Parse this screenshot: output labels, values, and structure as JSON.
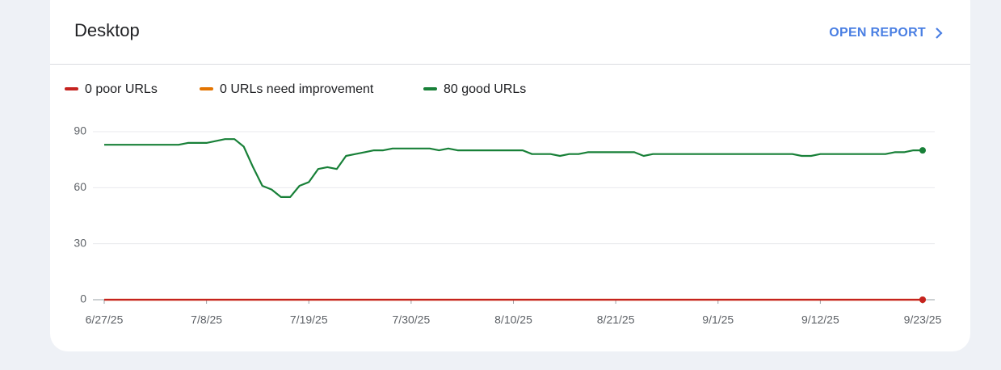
{
  "header": {
    "title": "Desktop",
    "action": "OPEN REPORT"
  },
  "chart_data": {
    "type": "line",
    "categories": [
      "6/27/25",
      null,
      null,
      null,
      null,
      null,
      null,
      null,
      null,
      null,
      null,
      "7/8/25",
      null,
      null,
      null,
      null,
      null,
      null,
      null,
      null,
      null,
      null,
      "7/19/25",
      null,
      null,
      null,
      null,
      null,
      null,
      null,
      null,
      null,
      null,
      "7/30/25",
      null,
      null,
      null,
      null,
      null,
      null,
      null,
      null,
      null,
      null,
      "8/10/25",
      null,
      null,
      null,
      null,
      null,
      null,
      null,
      null,
      null,
      null,
      "8/21/25",
      null,
      null,
      null,
      null,
      null,
      null,
      null,
      null,
      null,
      null,
      "9/1/25",
      null,
      null,
      null,
      null,
      null,
      null,
      null,
      null,
      null,
      null,
      "9/12/25",
      null,
      null,
      null,
      null,
      null,
      null,
      null,
      null,
      null,
      null,
      "9/23/25"
    ],
    "series": [
      {
        "name": "0 poor URLs",
        "color": "#c5221f",
        "values": [
          0,
          0,
          0,
          0,
          0,
          0,
          0,
          0,
          0,
          0,
          0,
          0,
          0,
          0,
          0,
          0,
          0,
          0,
          0,
          0,
          0,
          0,
          0,
          0,
          0,
          0,
          0,
          0,
          0,
          0,
          0,
          0,
          0,
          0,
          0,
          0,
          0,
          0,
          0,
          0,
          0,
          0,
          0,
          0,
          0,
          0,
          0,
          0,
          0,
          0,
          0,
          0,
          0,
          0,
          0,
          0,
          0,
          0,
          0,
          0,
          0,
          0,
          0,
          0,
          0,
          0,
          0,
          0,
          0,
          0,
          0,
          0,
          0,
          0,
          0,
          0,
          0,
          0,
          0,
          0,
          0,
          0,
          0,
          0,
          0,
          0,
          0,
          0,
          0
        ]
      },
      {
        "name": "0 URLs need improvement",
        "color": "#e37400",
        "values": [
          0,
          0,
          0,
          0,
          0,
          0,
          0,
          0,
          0,
          0,
          0,
          0,
          0,
          0,
          0,
          0,
          0,
          0,
          0,
          0,
          0,
          0,
          0,
          0,
          0,
          0,
          0,
          0,
          0,
          0,
          0,
          0,
          0,
          0,
          0,
          0,
          0,
          0,
          0,
          0,
          0,
          0,
          0,
          0,
          0,
          0,
          0,
          0,
          0,
          0,
          0,
          0,
          0,
          0,
          0,
          0,
          0,
          0,
          0,
          0,
          0,
          0,
          0,
          0,
          0,
          0,
          0,
          0,
          0,
          0,
          0,
          0,
          0,
          0,
          0,
          0,
          0,
          0,
          0,
          0,
          0,
          0,
          0,
          0,
          0,
          0,
          0,
          0,
          0
        ]
      },
      {
        "name": "80 good URLs",
        "color": "#188038",
        "values": [
          83,
          83,
          83,
          83,
          83,
          83,
          83,
          83,
          83,
          84,
          84,
          84,
          85,
          86,
          86,
          82,
          71,
          61,
          59,
          55,
          55,
          61,
          63,
          70,
          71,
          70,
          77,
          78,
          79,
          80,
          80,
          81,
          81,
          81,
          81,
          81,
          80,
          81,
          80,
          80,
          80,
          80,
          80,
          80,
          80,
          80,
          78,
          78,
          78,
          77,
          78,
          78,
          79,
          79,
          79,
          79,
          79,
          79,
          77,
          78,
          78,
          78,
          78,
          78,
          78,
          78,
          78,
          78,
          78,
          78,
          78,
          78,
          78,
          78,
          78,
          77,
          77,
          78,
          78,
          78,
          78,
          78,
          78,
          78,
          78,
          79,
          79,
          80,
          80
        ]
      }
    ],
    "ylim": [
      0,
      90
    ],
    "yticks": [
      0,
      30,
      60,
      90
    ],
    "grid": true
  }
}
